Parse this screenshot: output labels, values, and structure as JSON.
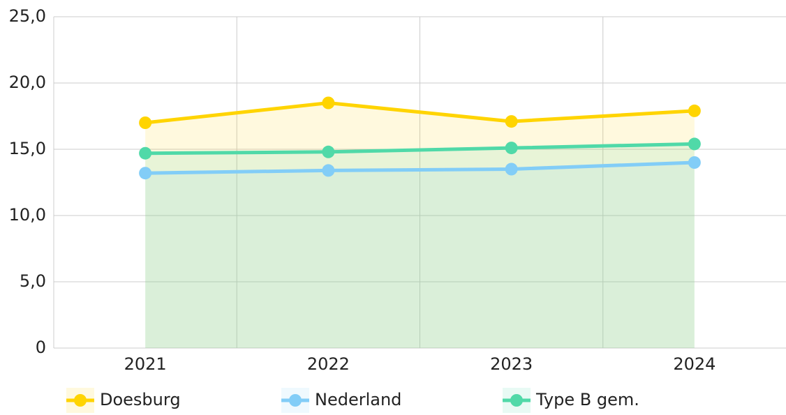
{
  "chart_data": {
    "type": "line",
    "categories": [
      "2021",
      "2022",
      "2023",
      "2024"
    ],
    "series": [
      {
        "name": "Doesburg",
        "color": "#ffd400",
        "values": [
          17.0,
          18.5,
          17.1,
          17.9
        ]
      },
      {
        "name": "Nederland",
        "color": "#82cdf7",
        "values": [
          13.2,
          13.4,
          13.5,
          14.0
        ]
      },
      {
        "name": "Type B gem.",
        "color": "#50d9a8",
        "values": [
          14.7,
          14.8,
          15.1,
          15.4
        ]
      }
    ],
    "ylim": [
      0,
      25
    ],
    "yticks": [
      0,
      {
        "value": 5,
        "label": "5,0"
      },
      {
        "value": 10,
        "label": "10,0"
      },
      {
        "value": 15,
        "label": "15,0"
      },
      {
        "value": 20,
        "label": "20,0"
      },
      {
        "value": 25,
        "label": "25,0"
      }
    ],
    "grid": true,
    "area": true,
    "legend": "bottom"
  }
}
